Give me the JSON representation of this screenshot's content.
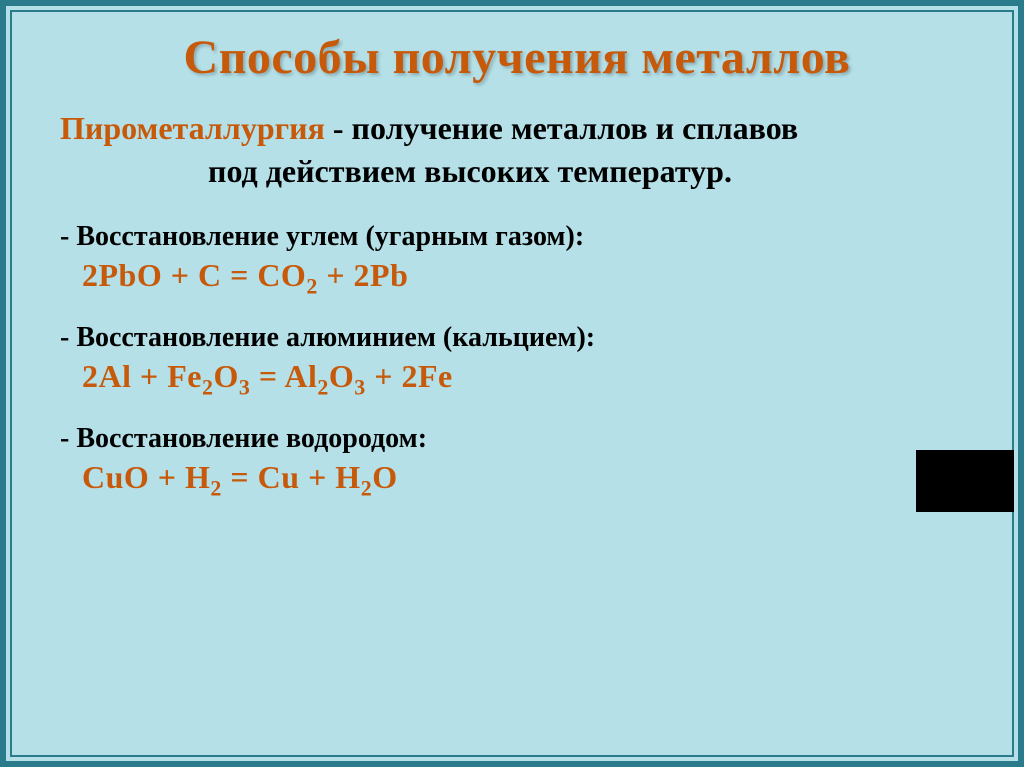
{
  "title": "Способы получения металлов",
  "intro": {
    "term": "Пирометаллургия",
    "rest1": " - получение металлов и сплавов",
    "line2": "под действием высоких температур."
  },
  "sections": [
    {
      "head": "- Восстановление углем (угарным газом):",
      "eq_html": "2PbO + C = CO<sub>2</sub> + 2Pb"
    },
    {
      "head": "- Восстановление алюминием (кальцием):",
      "eq_html": "2Al + Fe<sub>2</sub>O<sub>3</sub> = Al<sub>2</sub>O<sub>3</sub> + 2Fe"
    },
    {
      "head": "- Восстановление водородом:",
      "eq_html": "CuO + H<sub>2</sub> = Cu + H<sub>2</sub>O"
    }
  ],
  "colors": {
    "background": "#b5e0e8",
    "frame": "#2a7b8c",
    "accent": "#c65a0a",
    "text": "#000000"
  }
}
